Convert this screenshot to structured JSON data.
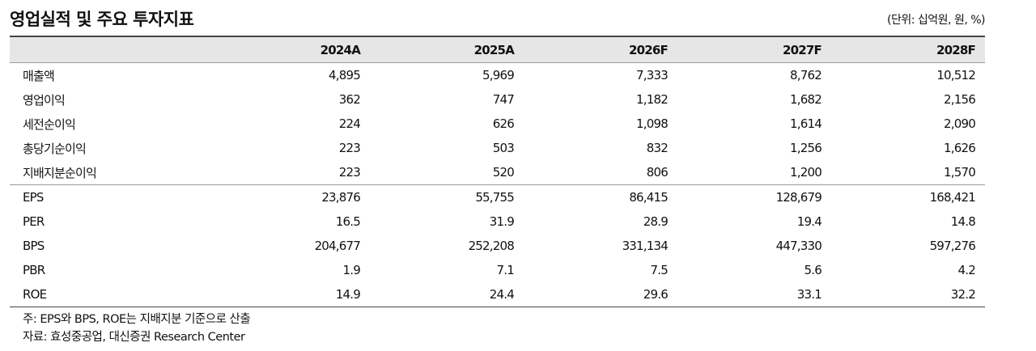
{
  "header": {
    "title": "영업실적 및 주요 투자지표",
    "unit": "(단위: 십억원, 원, %)"
  },
  "table": {
    "columns": [
      "",
      "2024A",
      "2025A",
      "2026F",
      "2027F",
      "2028F"
    ],
    "groups": [
      [
        [
          "매출액",
          "4,895",
          "5,969",
          "7,333",
          "8,762",
          "10,512"
        ],
        [
          "영업이익",
          "362",
          "747",
          "1,182",
          "1,682",
          "2,156"
        ],
        [
          "세전순이익",
          "224",
          "626",
          "1,098",
          "1,614",
          "2,090"
        ],
        [
          "총당기순이익",
          "223",
          "503",
          "832",
          "1,256",
          "1,626"
        ],
        [
          "지배지분순이익",
          "223",
          "520",
          "806",
          "1,200",
          "1,570"
        ]
      ],
      [
        [
          "EPS",
          "23,876",
          "55,755",
          "86,415",
          "128,679",
          "168,421"
        ],
        [
          "PER",
          "16.5",
          "31.9",
          "28.9",
          "19.4",
          "14.8"
        ],
        [
          "BPS",
          "204,677",
          "252,208",
          "331,134",
          "447,330",
          "597,276"
        ],
        [
          "PBR",
          "1.9",
          "7.1",
          "7.5",
          "5.6",
          "4.2"
        ],
        [
          "ROE",
          "14.9",
          "24.4",
          "29.6",
          "33.1",
          "32.2"
        ]
      ]
    ]
  },
  "notes": [
    "주: EPS와 BPS, ROE는 지배지분 기준으로 산출",
    "자료: 효성중공업, 대신증권 Research Center"
  ]
}
